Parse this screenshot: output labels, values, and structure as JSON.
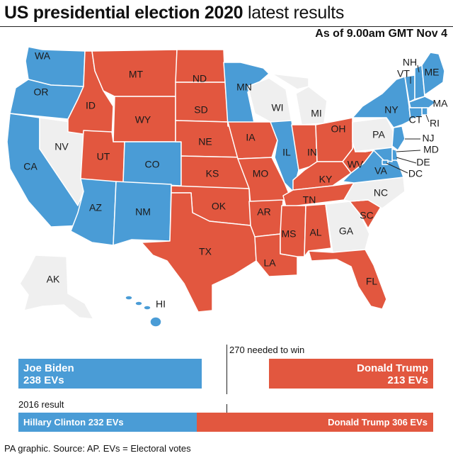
{
  "title": {
    "bold": "US presidential election 2020",
    "light": "latest results"
  },
  "as_of": "As of 9.00am GMT Nov 4",
  "colors": {
    "dem": "#4a9cd6",
    "rep": "#e2573f",
    "undecided": "#efefef",
    "dem_bar": "#4a9cd6",
    "rep_bar": "#e2573f"
  },
  "states": [
    {
      "abbr": "WA",
      "winner": "dem"
    },
    {
      "abbr": "OR",
      "winner": "dem"
    },
    {
      "abbr": "CA",
      "winner": "dem"
    },
    {
      "abbr": "NV",
      "winner": "undecided"
    },
    {
      "abbr": "ID",
      "winner": "rep"
    },
    {
      "abbr": "MT",
      "winner": "rep"
    },
    {
      "abbr": "WY",
      "winner": "rep"
    },
    {
      "abbr": "UT",
      "winner": "rep"
    },
    {
      "abbr": "AZ",
      "winner": "dem"
    },
    {
      "abbr": "CO",
      "winner": "dem"
    },
    {
      "abbr": "NM",
      "winner": "dem"
    },
    {
      "abbr": "ND",
      "winner": "rep"
    },
    {
      "abbr": "SD",
      "winner": "rep"
    },
    {
      "abbr": "NE",
      "winner": "rep"
    },
    {
      "abbr": "KS",
      "winner": "rep"
    },
    {
      "abbr": "OK",
      "winner": "rep"
    },
    {
      "abbr": "TX",
      "winner": "rep"
    },
    {
      "abbr": "MN",
      "winner": "dem"
    },
    {
      "abbr": "IA",
      "winner": "rep"
    },
    {
      "abbr": "MO",
      "winner": "rep"
    },
    {
      "abbr": "AR",
      "winner": "rep"
    },
    {
      "abbr": "LA",
      "winner": "rep"
    },
    {
      "abbr": "WI",
      "winner": "undecided"
    },
    {
      "abbr": "IL",
      "winner": "dem"
    },
    {
      "abbr": "MI",
      "winner": "undecided"
    },
    {
      "abbr": "IN",
      "winner": "rep"
    },
    {
      "abbr": "OH",
      "winner": "rep"
    },
    {
      "abbr": "KY",
      "winner": "rep"
    },
    {
      "abbr": "TN",
      "winner": "rep"
    },
    {
      "abbr": "MS",
      "winner": "rep"
    },
    {
      "abbr": "AL",
      "winner": "rep"
    },
    {
      "abbr": "GA",
      "winner": "undecided"
    },
    {
      "abbr": "FL",
      "winner": "rep"
    },
    {
      "abbr": "SC",
      "winner": "rep"
    },
    {
      "abbr": "NC",
      "winner": "undecided"
    },
    {
      "abbr": "VA",
      "winner": "dem"
    },
    {
      "abbr": "WV",
      "winner": "rep"
    },
    {
      "abbr": "PA",
      "winner": "undecided"
    },
    {
      "abbr": "NY",
      "winner": "dem"
    },
    {
      "abbr": "VT",
      "winner": "dem"
    },
    {
      "abbr": "NH",
      "winner": "dem"
    },
    {
      "abbr": "ME",
      "winner": "dem"
    },
    {
      "abbr": "MA",
      "winner": "dem"
    },
    {
      "abbr": "RI",
      "winner": "dem"
    },
    {
      "abbr": "CT",
      "winner": "dem"
    },
    {
      "abbr": "NJ",
      "winner": "dem"
    },
    {
      "abbr": "DE",
      "winner": "dem"
    },
    {
      "abbr": "MD",
      "winner": "dem"
    },
    {
      "abbr": "DC",
      "winner": "dem"
    },
    {
      "abbr": "AK",
      "winner": "undecided"
    },
    {
      "abbr": "HI",
      "winner": "dem"
    }
  ],
  "results_2020": {
    "needed": "270 needed to win",
    "biden": {
      "name": "Joe Biden",
      "evs": "238 EVs",
      "value": 238
    },
    "trump": {
      "name": "Donald Trump",
      "evs": "213 EVs",
      "value": 213
    }
  },
  "results_2016": {
    "label": "2016 result",
    "clinton": {
      "label": "Hillary Clinton 232 EVs",
      "value": 232
    },
    "trump": {
      "label": "Donald Trump 306 EVs",
      "value": 306
    }
  },
  "source": "PA graphic. Source: AP. EVs = Electoral votes"
}
